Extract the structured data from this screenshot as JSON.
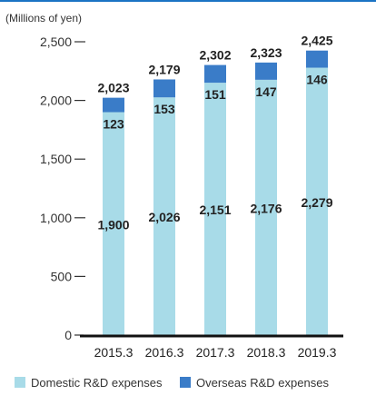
{
  "chart_data": {
    "type": "bar",
    "stacked": true,
    "unit_label": "(Millions of yen)",
    "categories": [
      "2015.3",
      "2016.3",
      "2017.3",
      "2018.3",
      "2019.3"
    ],
    "series": [
      {
        "name": "Domestic R&D expenses",
        "values": [
          1900,
          2026,
          2151,
          2176,
          2279
        ],
        "color": "#a8dbe8"
      },
      {
        "name": "Overseas R&D expenses",
        "values": [
          123,
          153,
          151,
          147,
          146
        ],
        "color": "#3a7cc8"
      }
    ],
    "totals": [
      2023,
      2179,
      2302,
      2323,
      2425
    ],
    "y_ticks": [
      0,
      500,
      1000,
      1500,
      2000,
      2500
    ],
    "ylim": [
      0,
      2500
    ],
    "legend_position": "bottom",
    "grid": false
  }
}
